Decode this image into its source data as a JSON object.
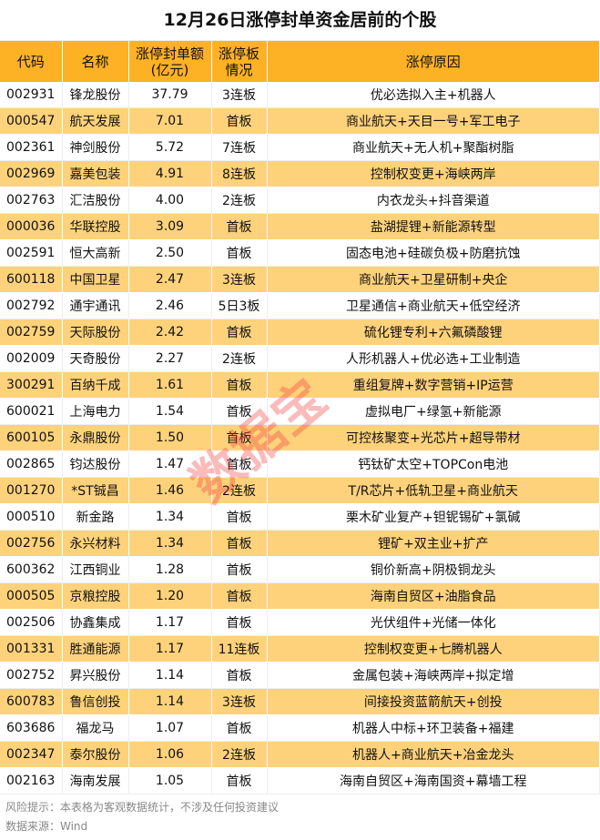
{
  "title": "12月26日涨停封单资金居前的个股",
  "headers": [
    "代码",
    "名称",
    "涨停封单额\n(亿元)",
    "涨停板\n情况",
    "涨停原因"
  ],
  "header_lines": [
    [
      "代码"
    ],
    [
      "名称"
    ],
    [
      "涨停封单额",
      "(亿元)"
    ],
    [
      "涨停板",
      "情况"
    ],
    [
      "涨停原因"
    ]
  ],
  "rows": [
    [
      "002931",
      "锋龙股份",
      "37.79",
      "3连板",
      "优必选拟入主+机器人"
    ],
    [
      "000547",
      "航天发展",
      "7.01",
      "首板",
      "商业航天+天目一号+军工电子"
    ],
    [
      "002361",
      "神剑股份",
      "5.72",
      "7连板",
      "商业航天+无人机+聚酯树脂"
    ],
    [
      "002969",
      "嘉美包装",
      "4.91",
      "8连板",
      "控制权变更+海峡两岸"
    ],
    [
      "002763",
      "汇洁股份",
      "4.00",
      "2连板",
      "内衣龙头+抖音渠道"
    ],
    [
      "000036",
      "华联控股",
      "3.09",
      "首板",
      "盐湖提锂+新能源转型"
    ],
    [
      "002591",
      "恒大高新",
      "2.50",
      "首板",
      "固态电池+硅碳负极+防磨抗蚀"
    ],
    [
      "600118",
      "中国卫星",
      "2.47",
      "3连板",
      "商业航天+卫星研制+央企"
    ],
    [
      "002792",
      "通宇通讯",
      "2.46",
      "5日3板",
      "卫星通信+商业航天+低空经济"
    ],
    [
      "002759",
      "天际股份",
      "2.42",
      "首板",
      "硫化锂专利+六氟磷酸锂"
    ],
    [
      "002009",
      "天奇股份",
      "2.27",
      "2连板",
      "人形机器人+优必选+工业制造"
    ],
    [
      "300291",
      "百纳千成",
      "1.61",
      "首板",
      "重组复牌+数字营销+IP运营"
    ],
    [
      "600021",
      "上海电力",
      "1.54",
      "首板",
      "虚拟电厂+绿氢+新能源"
    ],
    [
      "600105",
      "永鼎股份",
      "1.50",
      "首板",
      "可控核聚变+光芯片+超导带材"
    ],
    [
      "002865",
      "钧达股份",
      "1.47",
      "首板",
      "钙钛矿太空+TOPCon电池"
    ],
    [
      "001270",
      "*ST铖昌",
      "1.46",
      "2连板",
      "T/R芯片+低轨卫星+商业航天"
    ],
    [
      "000510",
      "新金路",
      "1.34",
      "首板",
      "栗木矿业复产+钽铌锡矿+氯碱"
    ],
    [
      "002756",
      "永兴材料",
      "1.34",
      "首板",
      "锂矿+双主业+扩产"
    ],
    [
      "600362",
      "江西铜业",
      "1.28",
      "首板",
      "铜价新高+阴极铜龙头"
    ],
    [
      "000505",
      "京粮控股",
      "1.20",
      "首板",
      "海南自贸区+油脂食品"
    ],
    [
      "002506",
      "协鑫集成",
      "1.17",
      "首板",
      "光伏组件+光储一体化"
    ],
    [
      "001331",
      "胜通能源",
      "1.17",
      "11连板",
      "控制权变更+七腾机器人"
    ],
    [
      "002752",
      "昇兴股份",
      "1.14",
      "首板",
      "金属包装+海峡两岸+拟定增"
    ],
    [
      "600783",
      "鲁信创投",
      "1.14",
      "3连板",
      "间接投资蓝箭航天+创投"
    ],
    [
      "603686",
      "福龙马",
      "1.07",
      "首板",
      "机器人中标+环卫装备+福建"
    ],
    [
      "002347",
      "泰尔股份",
      "1.06",
      "2连板",
      "机器人+商业航天+冶金龙头"
    ],
    [
      "002163",
      "海南发展",
      "1.05",
      "首板",
      "海南自贸区+海南国资+幕墙工程"
    ]
  ],
  "footer": {
    "risk": "风险提示：本表格为客观数据统计，不涉及任何投资建议",
    "source": "数据来源：Wind"
  },
  "watermark": "数据宝",
  "colors": {
    "header": "#FDB124",
    "stripe": "#FED27B",
    "watermark": "#F03C3C"
  }
}
